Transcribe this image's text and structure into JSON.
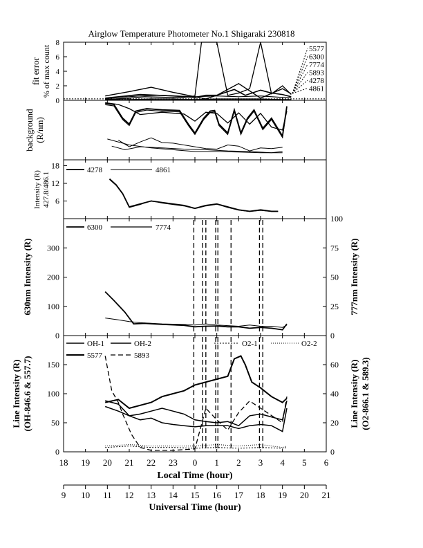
{
  "title": "Airglow Temperature Photometer No.1  Shigaraki  230818",
  "bottom_axes": {
    "local_xlabel": "Local Time (hour)",
    "local_ticks": [
      "18",
      "19",
      "20",
      "21",
      "22",
      "23",
      "0",
      "1",
      "2",
      "3",
      "4",
      "5",
      "6"
    ],
    "ut_xlabel": "Universal Time (hour)",
    "ut_ticks": [
      "9",
      "10",
      "11",
      "12",
      "13",
      "14",
      "15",
      "16",
      "17",
      "18",
      "19",
      "20",
      "21"
    ]
  },
  "chart_data": [
    {
      "id": "fit",
      "type": "line",
      "ylabel": [
        "fit error",
        "% of max count"
      ],
      "ylim": [
        0,
        8
      ],
      "yticks": [
        "0",
        "2",
        "4",
        "6",
        "8"
      ],
      "x_unit": "local time hour (0 = midnight)",
      "legend": [
        "5577",
        "6300",
        "7774",
        "5893",
        "4278",
        "4861"
      ],
      "series": [
        {
          "name": "5577",
          "x": [
            -4.1,
            -3,
            -2.3,
            -1.2,
            -0.5,
            0,
            0.3,
            0.5,
            1,
            1.5,
            2,
            2.5,
            3,
            3.5,
            4,
            4.4
          ],
          "y": [
            0.1,
            0.3,
            0.5,
            0.4,
            0.4,
            0.6,
            8,
            8,
            8,
            0.7,
            1,
            1.6,
            8,
            0.9,
            2,
            0.8
          ]
        },
        {
          "name": "6300",
          "x": [
            -4.1,
            -2.5,
            -1,
            0,
            0.5,
            1,
            1.8,
            2.3,
            3,
            3.5,
            4,
            4.4
          ],
          "y": [
            0.3,
            0.8,
            0.6,
            0.4,
            0.7,
            0.7,
            1.5,
            0.7,
            1.4,
            1,
            0.8,
            0.5
          ]
        },
        {
          "name": "7774",
          "x": [
            -4.1,
            -3.5,
            -2.5,
            -1.5,
            0,
            1,
            2,
            3,
            4,
            4.4
          ],
          "y": [
            0.2,
            0.4,
            0.6,
            0.7,
            0.5,
            0.6,
            0.5,
            0.6,
            0.4,
            0.4
          ]
        },
        {
          "name": "5893",
          "x": [
            -4.1,
            -3,
            -2,
            -1,
            0,
            0.5,
            1,
            2,
            3,
            4,
            4.4
          ],
          "y": [
            0.6,
            1.2,
            1.8,
            1.1,
            0.5,
            0.2,
            0.7,
            2.3,
            0.3,
            1.6,
            0.9
          ]
        },
        {
          "name": "4278",
          "x": [
            -4.1,
            -3,
            -2,
            -1,
            0,
            1,
            2,
            3,
            4,
            4.4
          ],
          "y": [
            0.1,
            0.1,
            0.2,
            0.2,
            0.1,
            0.2,
            0.2,
            0.2,
            0.1,
            0.1
          ]
        },
        {
          "name": "4861",
          "x": [
            -4.1,
            -3,
            -2,
            -1,
            0,
            1,
            2,
            3,
            4,
            4.4
          ],
          "y": [
            0.1,
            0.1,
            0.1,
            0.1,
            0.1,
            0.1,
            0.1,
            0.1,
            0.1,
            0.1
          ]
        }
      ]
    },
    {
      "id": "bg",
      "type": "line",
      "ylabel": [
        "background",
        "(R/nm)"
      ],
      "ylim": [
        0,
        100
      ],
      "series": [
        {
          "name": "a",
          "x": [
            -4.1,
            -3.7,
            -3.3,
            -3,
            -2.7,
            -2.2,
            -1.5,
            -0.7,
            -0.3,
            0,
            0.4,
            0.7,
            0.9,
            1.1,
            1.5,
            1.8,
            2.1,
            2.4,
            2.7,
            3.1,
            3.5,
            4,
            4.2
          ],
          "y": [
            95,
            93,
            70,
            60,
            82,
            86,
            84,
            83,
            60,
            45,
            70,
            82,
            83,
            60,
            45,
            84,
            45,
            70,
            84,
            53,
            70,
            40,
            90
          ]
        },
        {
          "name": "b",
          "x": [
            -4.1,
            -3.5,
            -3,
            -2.5,
            -1.5,
            -0.5,
            0,
            0.5,
            1,
            1.5,
            2,
            2.5,
            3,
            3.5,
            4,
            4.2
          ],
          "y": [
            96,
            93,
            86,
            76,
            80,
            77,
            65,
            80,
            78,
            62,
            79,
            60,
            78,
            55,
            50,
            82
          ]
        },
        {
          "name": "c",
          "x": [
            -3.5,
            -3,
            -2.5,
            -2,
            -1.5,
            -1,
            0,
            0.5,
            1,
            1.5,
            2,
            2.5,
            3,
            3.5,
            4
          ],
          "y": [
            33,
            22,
            30,
            37,
            29,
            28,
            22,
            19,
            18,
            25,
            23,
            15,
            20,
            19,
            21
          ]
        },
        {
          "name": "d",
          "x": [
            -3.8,
            -3.2,
            -2.5,
            -1.5,
            -0.5,
            0.5,
            1.5,
            2.5,
            3.5,
            4
          ],
          "y": [
            23,
            17,
            22,
            20,
            18,
            17,
            15,
            14,
            12,
            14
          ]
        },
        {
          "name": "e",
          "x": [
            -4,
            -3,
            -2,
            -1,
            0,
            1,
            2,
            3,
            4
          ],
          "y": [
            35,
            25,
            20,
            17,
            14,
            14,
            13,
            12,
            12
          ]
        }
      ]
    },
    {
      "id": "nm",
      "type": "line",
      "ylabel": [
        "Intensity (R)",
        "427.8/486.1"
      ],
      "ylim": [
        0,
        20
      ],
      "yticks": [
        "6",
        "12",
        "18"
      ],
      "legend": [
        "4278",
        "4861"
      ],
      "series": [
        {
          "name": "4278",
          "x": [
            -3.9,
            -3.6,
            -3.3,
            -3,
            -2.5,
            -2,
            -1.5,
            -1,
            -0.5,
            0,
            0.5,
            1,
            1.5,
            2,
            2.5,
            3,
            3.5,
            3.8
          ],
          "y": [
            13.5,
            11.5,
            8.5,
            4,
            5,
            6,
            5.5,
            5,
            4.5,
            3.5,
            4.5,
            5,
            4,
            3,
            2.5,
            3,
            2.5,
            2.5
          ]
        },
        {
          "name": "4861",
          "x": [
            -3.9,
            -3.6,
            -3.3,
            -3,
            -2.5,
            -2,
            -1.5,
            -1,
            -0.5,
            0,
            0.5,
            1,
            1.5,
            2,
            2.5,
            3,
            3.5,
            3.8
          ],
          "y": [
            13.3,
            11.3,
            8.3,
            3.8,
            4.8,
            6.1,
            5.3,
            4.8,
            4.3,
            3.4,
            4.3,
            4.9,
            3.8,
            2.9,
            2.4,
            2.8,
            2.4,
            2.4
          ]
        }
      ]
    },
    {
      "id": "red",
      "type": "line",
      "ylabel_left": "630nm Intensity (R)",
      "ylabel_right": "777nm Intensity (R)",
      "ylim": [
        0,
        400
      ],
      "yticks": [
        "0",
        "100",
        "200",
        "300"
      ],
      "ylim_right": [
        0,
        100
      ],
      "yticks_right": [
        "0",
        "25",
        "50",
        "75",
        "100"
      ],
      "legend": [
        "6300",
        "7774"
      ],
      "series": [
        {
          "name": "6300",
          "x": [
            -4.1,
            -3.7,
            -3.2,
            -2.8,
            -2.3,
            -1.5,
            -0.5,
            0,
            0.5,
            1,
            1.5,
            2,
            2.5,
            3,
            3.5,
            4,
            4.2
          ],
          "y": [
            150,
            120,
            80,
            40,
            42,
            38,
            35,
            30,
            32,
            33,
            30,
            30,
            25,
            28,
            25,
            20,
            40
          ]
        },
        {
          "name": "7774",
          "x": [
            -4.1,
            -3.5,
            -3,
            -2.5,
            -1.5,
            -0.5,
            0,
            0.5,
            1,
            1.5,
            2,
            2.5,
            3,
            3.5,
            4,
            4.2
          ],
          "y": [
            15,
            13.5,
            12,
            11,
            10,
            9.5,
            9,
            10,
            9,
            8.5,
            8,
            9,
            8,
            8,
            7,
            9
          ]
        }
      ],
      "markers": [
        -0.05,
        0.35,
        0.5,
        0.95,
        1.05,
        1.65,
        2.95,
        3.1
      ]
    },
    {
      "id": "line",
      "type": "line",
      "ylabel_left": [
        "Line Intensity (R)",
        "(OH-846.6 & 557.7)"
      ],
      "ylabel_right": [
        "Line Intensity (R)",
        "(O2-866.1 & 589.3)"
      ],
      "ylim": [
        0,
        200
      ],
      "yticks": [
        "0",
        "50",
        "100",
        "150"
      ],
      "ylim_right": [
        0,
        80
      ],
      "yticks_right": [
        "0",
        "20",
        "40",
        "60"
      ],
      "legend": [
        "OH-1",
        "OH-2",
        "O2-1",
        "O2-2",
        "5577",
        "5893"
      ],
      "series": [
        {
          "name": "OH-1",
          "axis": "left",
          "x": [
            -4.1,
            -3.5,
            -3,
            -2.5,
            -2,
            -1.5,
            -1,
            -0.5,
            0,
            0.5,
            1,
            1.5,
            2,
            2.5,
            3,
            3.5,
            4,
            4.2
          ],
          "y": [
            88,
            82,
            62,
            65,
            70,
            75,
            70,
            65,
            55,
            52,
            50,
            52,
            45,
            62,
            65,
            60,
            55,
            88
          ]
        },
        {
          "name": "OH-2",
          "axis": "left",
          "x": [
            -4.1,
            -3.5,
            -3,
            -2.5,
            -2,
            -1.5,
            -1,
            -0.5,
            0,
            0.5,
            1,
            1.5,
            2,
            2.5,
            3,
            3.5,
            4,
            4.2
          ],
          "y": [
            78,
            70,
            62,
            55,
            58,
            50,
            47,
            45,
            43,
            45,
            45,
            45,
            40,
            45,
            47,
            45,
            35,
            75
          ]
        },
        {
          "name": "5577",
          "axis": "left",
          "x": [
            -4.1,
            -3.5,
            -3,
            -2.5,
            -2,
            -1.5,
            -1,
            -0.5,
            0,
            0.5,
            1,
            1.5,
            1.8,
            2.1,
            2.3,
            2.6,
            3,
            3.5,
            4,
            4.2
          ],
          "y": [
            85,
            90,
            75,
            80,
            85,
            95,
            100,
            105,
            115,
            120,
            125,
            130,
            160,
            165,
            150,
            120,
            110,
            95,
            85,
            92
          ]
        },
        {
          "name": "O2-1",
          "axis": "right",
          "x": [
            -4.1,
            -3,
            -2,
            -1,
            0,
            1,
            2,
            3,
            4,
            4.2
          ],
          "y": [
            3,
            4,
            3,
            3,
            2.5,
            3,
            2.5,
            3,
            2.5,
            3
          ]
        },
        {
          "name": "O2-2",
          "axis": "right",
          "x": [
            -4.1,
            -3,
            -2,
            -1,
            0,
            1,
            2,
            3,
            4,
            4.2
          ],
          "y": [
            4,
            5,
            4,
            4,
            4,
            5,
            4,
            5,
            3,
            4
          ]
        },
        {
          "name": "5893",
          "axis": "right",
          "x": [
            -4.1,
            -3.8,
            -3.5,
            -3.3,
            -2.9,
            -2.5,
            -2,
            -1.5,
            -1,
            0,
            0.5,
            1,
            1.5,
            2,
            2.5,
            3,
            3.5,
            4,
            4.2
          ],
          "y": [
            66,
            42,
            34,
            26,
            12,
            3,
            1,
            1,
            1,
            2,
            30,
            22,
            15,
            27,
            35,
            30,
            25,
            20,
            38
          ]
        }
      ],
      "markers": [
        -0.05,
        0.35,
        0.5,
        0.95,
        1.05,
        1.65,
        2.95,
        3.1
      ]
    }
  ],
  "colors": {
    "ink": "#000000",
    "background": "#ffffff"
  }
}
